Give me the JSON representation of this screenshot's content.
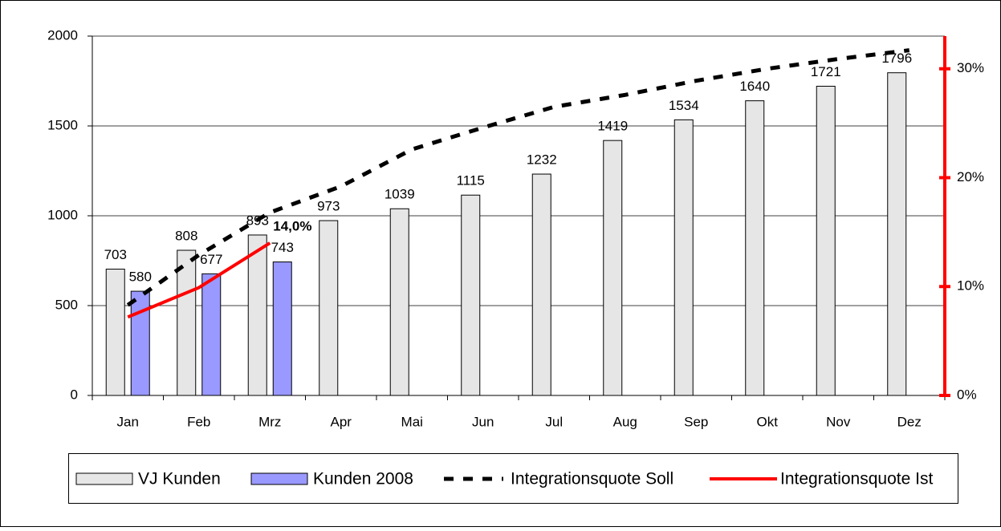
{
  "chart_data": {
    "type": "bar",
    "categories": [
      "Jan",
      "Feb",
      "Mrz",
      "Apr",
      "Mai",
      "Jun",
      "Jul",
      "Aug",
      "Sep",
      "Okt",
      "Nov",
      "Dez"
    ],
    "ylim": [
      0,
      2000
    ],
    "yticks": [
      0,
      500,
      1000,
      1500,
      2000
    ],
    "y2lim": [
      0,
      33
    ],
    "y2ticks": [
      {
        "value": 0,
        "label": "0%"
      },
      {
        "value": 10,
        "label": "10%"
      },
      {
        "value": 20,
        "label": "20%"
      },
      {
        "value": 30,
        "label": "30%"
      }
    ],
    "y2_axis_color": "#ff0000",
    "grid": true,
    "legend": "bottom",
    "series": [
      {
        "name": "VJ Kunden",
        "type": "bar",
        "color": "#e6e6e6",
        "values": [
          703,
          808,
          893,
          973,
          1039,
          1115,
          1232,
          1419,
          1534,
          1640,
          1721,
          1796
        ]
      },
      {
        "name": "Kunden 2008",
        "type": "bar",
        "color": "#9999ff",
        "values": [
          580,
          677,
          743,
          null,
          null,
          null,
          null,
          null,
          null,
          null,
          null,
          null
        ]
      },
      {
        "name": "Integrationsquote Soll",
        "type": "line",
        "axis": "y2",
        "color": "#000000",
        "line_style": "dashed",
        "values": [
          8.3,
          12.9,
          16.8,
          19.2,
          22.6,
          24.6,
          26.5,
          27.6,
          28.9,
          30.0,
          30.9,
          31.7
        ]
      },
      {
        "name": "Integrationsquote Ist",
        "type": "line",
        "axis": "y2",
        "color": "#ff0000",
        "line_style": "solid",
        "values": [
          7.2,
          9.9,
          14.0,
          null,
          null,
          null,
          null,
          null,
          null,
          null,
          null,
          null
        ],
        "value_labels": [
          null,
          null,
          "14,0%",
          null,
          null,
          null,
          null,
          null,
          null,
          null,
          null,
          null
        ]
      }
    ]
  }
}
